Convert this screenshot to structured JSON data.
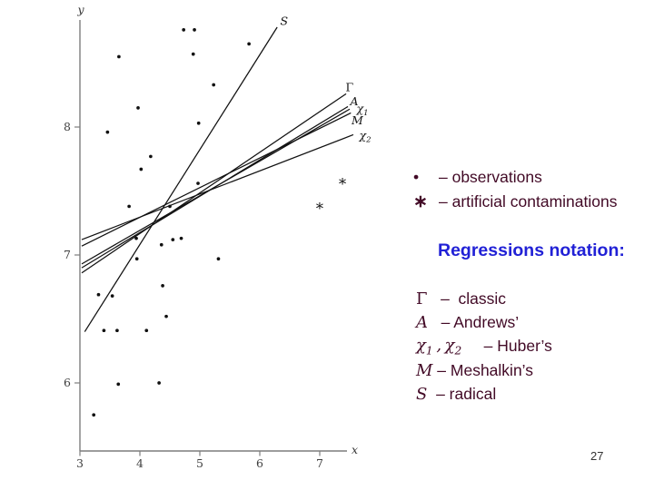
{
  "slide": {
    "page_number": "27"
  },
  "key": {
    "bullet_symbol": "•",
    "observations_label": "– observations",
    "contamination_symbol": "∗",
    "contaminations_label": "– artificial contaminations"
  },
  "notation": {
    "title": "Regressions notation:",
    "items": [
      {
        "symbol": "Γ",
        "label": "   –  classic"
      },
      {
        "symbol": "A",
        "label": "   – Andrews’"
      },
      {
        "symbol": "χ1 , χ2",
        "label": "     – Huber’s"
      },
      {
        "symbol": "M",
        "label": " – Meshalkin’s"
      },
      {
        "symbol": "S",
        "label": "  – radical"
      }
    ]
  },
  "chart_data": {
    "type": "scatter",
    "xlabel": "x",
    "ylabel": "y",
    "x_ticks": [
      3,
      4,
      5,
      6,
      7
    ],
    "y_ticks": [
      6,
      7,
      8
    ],
    "xlim": [
      3,
      7.45
    ],
    "ylim": [
      5.47,
      9.15
    ],
    "observations": [
      [
        4.73,
        8.76
      ],
      [
        4.91,
        8.76
      ],
      [
        5.82,
        8.65
      ],
      [
        3.65,
        8.55
      ],
      [
        4.89,
        8.57
      ],
      [
        5.23,
        8.33
      ],
      [
        3.97,
        8.15
      ],
      [
        4.98,
        8.03
      ],
      [
        3.46,
        7.96
      ],
      [
        4.18,
        7.77
      ],
      [
        4.02,
        7.67
      ],
      [
        4.97,
        7.56
      ],
      [
        3.82,
        7.38
      ],
      [
        4.5,
        7.38
      ],
      [
        3.94,
        7.13
      ],
      [
        4.55,
        7.12
      ],
      [
        4.69,
        7.13
      ],
      [
        4.36,
        7.08
      ],
      [
        3.95,
        6.97
      ],
      [
        5.31,
        6.97
      ],
      [
        4.38,
        6.76
      ],
      [
        3.31,
        6.69
      ],
      [
        3.54,
        6.68
      ],
      [
        4.44,
        6.52
      ],
      [
        3.4,
        6.41
      ],
      [
        3.62,
        6.41
      ],
      [
        4.11,
        6.41
      ],
      [
        3.64,
        5.99
      ],
      [
        4.32,
        6.0
      ],
      [
        3.23,
        5.75
      ]
    ],
    "contaminations": [
      [
        7.38,
        7.57
      ],
      [
        7.0,
        7.38
      ]
    ],
    "lines": [
      {
        "label": "S",
        "x1": 3.08,
        "y1": 6.4,
        "x2": 6.29,
        "y2": 8.78
      },
      {
        "label": "Γ",
        "x1": 3.03,
        "y1": 6.86,
        "x2": 7.44,
        "y2": 8.26
      },
      {
        "label": "A",
        "x1": 3.03,
        "y1": 6.9,
        "x2": 7.47,
        "y2": 8.16
      },
      {
        "label": "χ1",
        "x1": 3.03,
        "y1": 6.93,
        "x2": 7.5,
        "y2": 8.14
      },
      {
        "label": "M",
        "x1": 3.03,
        "y1": 7.07,
        "x2": 7.52,
        "y2": 8.11
      },
      {
        "label": "χ2",
        "x1": 3.03,
        "y1": 7.12,
        "x2": 7.56,
        "y2": 7.94
      }
    ]
  }
}
